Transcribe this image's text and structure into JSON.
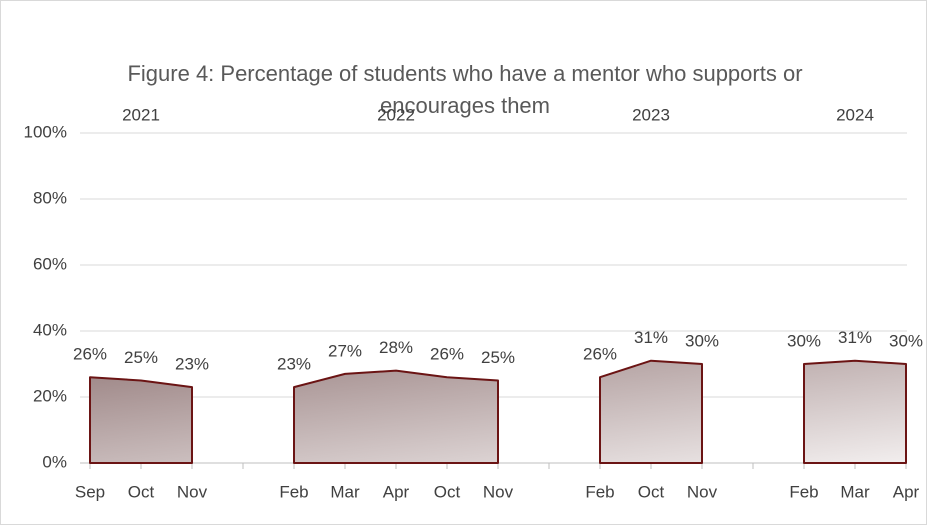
{
  "chart_data": {
    "type": "area",
    "title": "Figure 4: Percentage of students who have a mentor who supports or encourages them",
    "group_labels": [
      "2021",
      "2022",
      "2023",
      "2024"
    ],
    "categories": [
      "Sep",
      "Oct",
      "Nov",
      null,
      "Feb",
      "Mar",
      "Apr",
      "Oct",
      "Nov",
      null,
      "Feb",
      "Oct",
      "Nov",
      null,
      "Feb",
      "Mar",
      "Apr"
    ],
    "values": [
      26,
      25,
      23,
      null,
      23,
      27,
      28,
      26,
      25,
      null,
      26,
      31,
      30,
      null,
      30,
      31,
      30
    ],
    "value_labels": [
      "26%",
      "25%",
      "23%",
      null,
      "23%",
      "27%",
      "28%",
      "26%",
      "25%",
      null,
      "26%",
      "31%",
      "30%",
      null,
      "30%",
      "31%",
      "30%"
    ],
    "color": "#6b1414",
    "ylim": [
      0,
      100
    ],
    "yticks": [
      {
        "value": 0,
        "label": "0%"
      },
      {
        "value": 20,
        "label": "20%"
      },
      {
        "value": 40,
        "label": "40%"
      },
      {
        "value": 60,
        "label": "60%"
      },
      {
        "value": 80,
        "label": "80%"
      },
      {
        "value": 100,
        "label": "100%"
      }
    ],
    "grid": true
  }
}
